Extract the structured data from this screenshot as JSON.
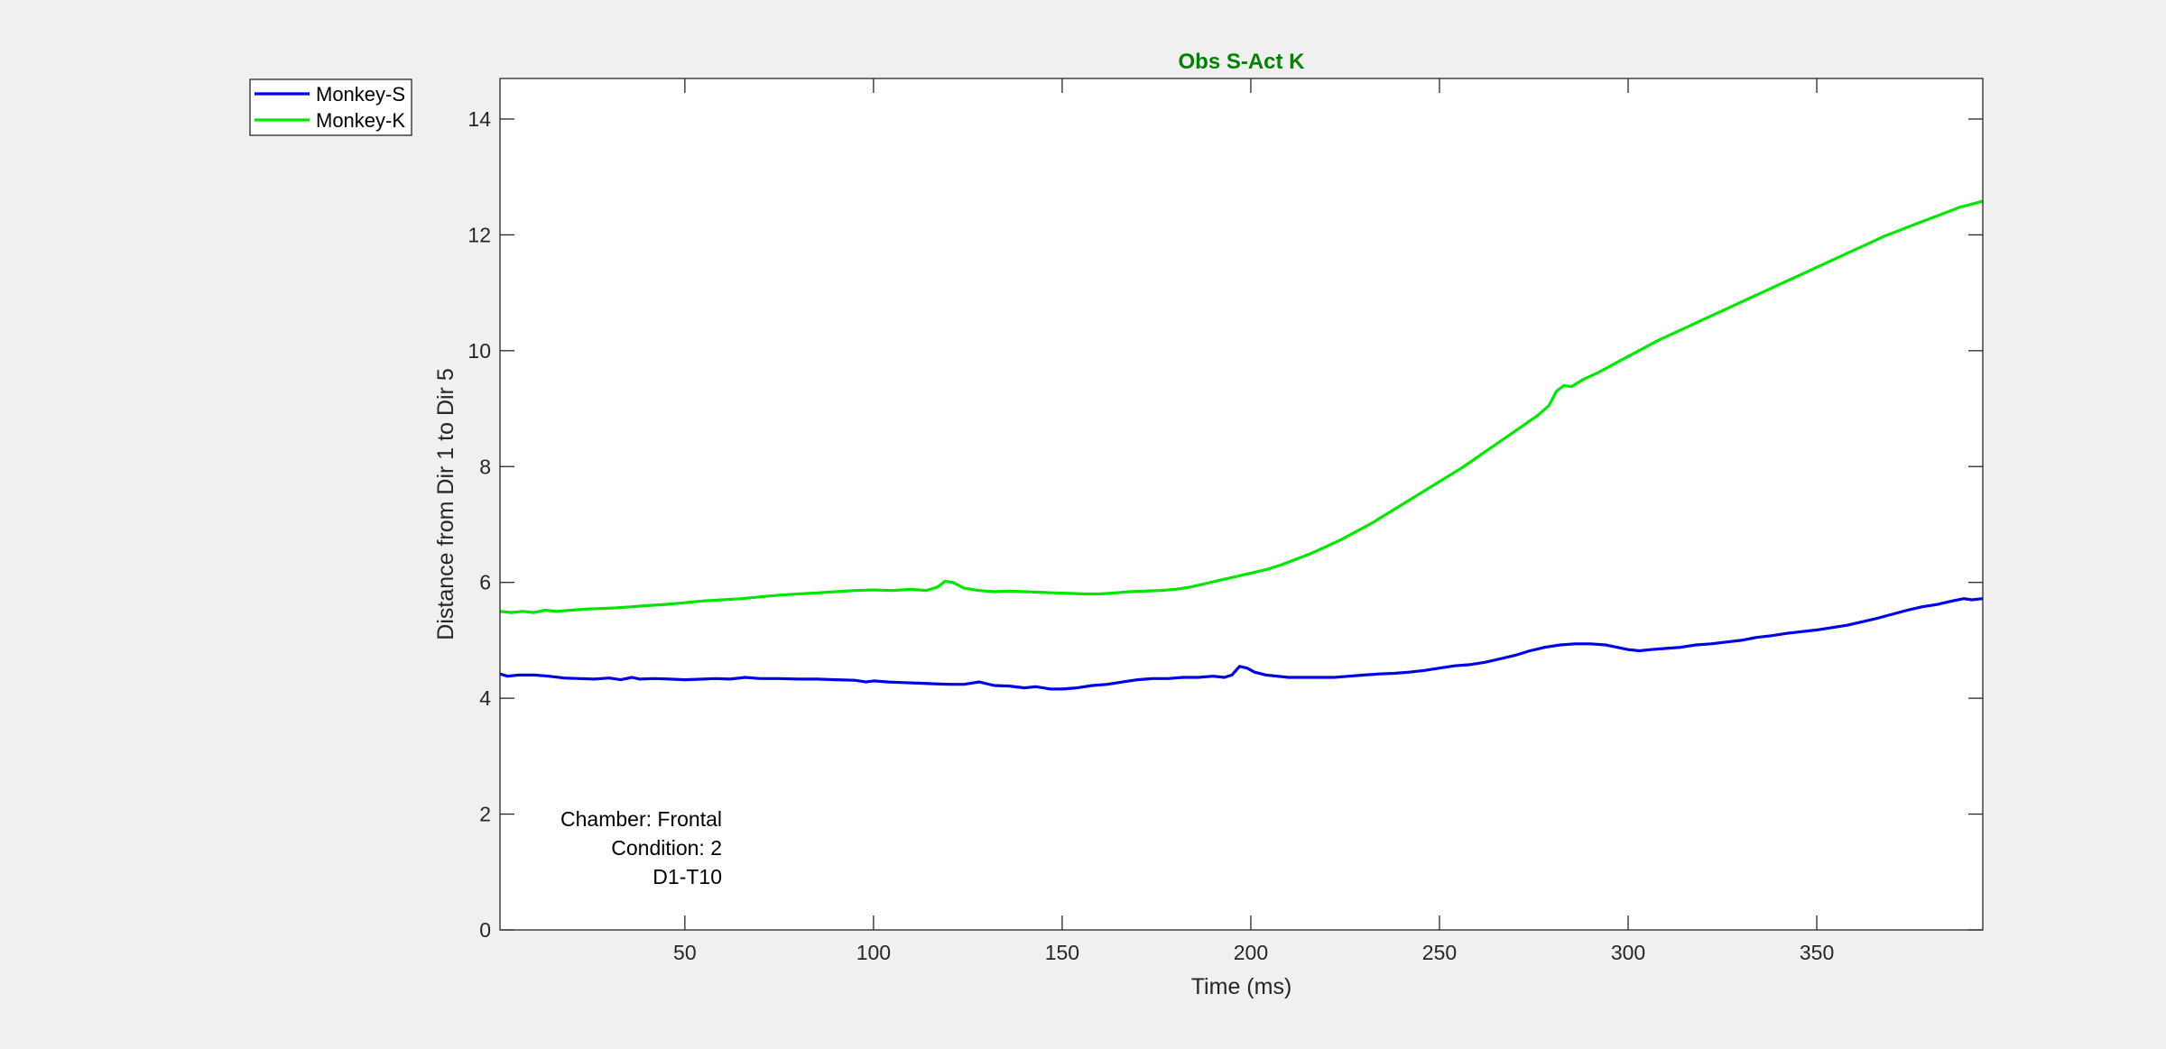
{
  "figure": {
    "background": "#f0f0f0"
  },
  "chart_data": {
    "type": "line",
    "title": "Obs S-Act K",
    "title_color": "#008000",
    "xlabel": "Time (ms)",
    "ylabel": "Distance from Dir 1 to Dir 5",
    "xlim": [
      1,
      394
    ],
    "ylim": [
      0,
      14.7
    ],
    "xticks": [
      50,
      100,
      150,
      200,
      250,
      300,
      350
    ],
    "yticks": [
      0,
      2,
      4,
      6,
      8,
      10,
      12,
      14
    ],
    "grid": false,
    "legend_position": "outside-top-left",
    "annotation": [
      "Chamber: Frontal",
      "Condition: 2",
      "D1-T10"
    ],
    "series": [
      {
        "name": "Monkey-S",
        "color": "#0000e6",
        "points": [
          [
            1,
            4.42
          ],
          [
            3,
            4.38
          ],
          [
            6,
            4.4
          ],
          [
            10,
            4.4
          ],
          [
            14,
            4.38
          ],
          [
            18,
            4.35
          ],
          [
            22,
            4.34
          ],
          [
            26,
            4.33
          ],
          [
            30,
            4.35
          ],
          [
            33,
            4.32
          ],
          [
            36,
            4.36
          ],
          [
            38,
            4.33
          ],
          [
            42,
            4.34
          ],
          [
            46,
            4.33
          ],
          [
            50,
            4.32
          ],
          [
            55,
            4.33
          ],
          [
            58,
            4.34
          ],
          [
            62,
            4.33
          ],
          [
            66,
            4.36
          ],
          [
            70,
            4.34
          ],
          [
            75,
            4.34
          ],
          [
            80,
            4.33
          ],
          [
            85,
            4.33
          ],
          [
            90,
            4.32
          ],
          [
            95,
            4.31
          ],
          [
            98,
            4.28
          ],
          [
            100,
            4.3
          ],
          [
            104,
            4.28
          ],
          [
            108,
            4.27
          ],
          [
            112,
            4.26
          ],
          [
            116,
            4.25
          ],
          [
            120,
            4.24
          ],
          [
            124,
            4.24
          ],
          [
            128,
            4.28
          ],
          [
            132,
            4.22
          ],
          [
            136,
            4.21
          ],
          [
            140,
            4.18
          ],
          [
            143,
            4.2
          ],
          [
            147,
            4.16
          ],
          [
            150,
            4.16
          ],
          [
            154,
            4.18
          ],
          [
            158,
            4.22
          ],
          [
            162,
            4.24
          ],
          [
            166,
            4.28
          ],
          [
            170,
            4.32
          ],
          [
            174,
            4.34
          ],
          [
            178,
            4.34
          ],
          [
            182,
            4.36
          ],
          [
            186,
            4.36
          ],
          [
            190,
            4.38
          ],
          [
            193,
            4.36
          ],
          [
            195,
            4.4
          ],
          [
            197,
            4.55
          ],
          [
            199,
            4.52
          ],
          [
            201,
            4.45
          ],
          [
            204,
            4.4
          ],
          [
            207,
            4.38
          ],
          [
            210,
            4.36
          ],
          [
            214,
            4.36
          ],
          [
            218,
            4.36
          ],
          [
            222,
            4.36
          ],
          [
            226,
            4.38
          ],
          [
            230,
            4.4
          ],
          [
            234,
            4.42
          ],
          [
            238,
            4.43
          ],
          [
            242,
            4.45
          ],
          [
            246,
            4.48
          ],
          [
            250,
            4.52
          ],
          [
            254,
            4.56
          ],
          [
            258,
            4.58
          ],
          [
            262,
            4.62
          ],
          [
            266,
            4.68
          ],
          [
            270,
            4.74
          ],
          [
            274,
            4.82
          ],
          [
            278,
            4.88
          ],
          [
            282,
            4.92
          ],
          [
            286,
            4.94
          ],
          [
            290,
            4.94
          ],
          [
            294,
            4.92
          ],
          [
            297,
            4.88
          ],
          [
            300,
            4.84
          ],
          [
            303,
            4.82
          ],
          [
            306,
            4.84
          ],
          [
            310,
            4.86
          ],
          [
            314,
            4.88
          ],
          [
            318,
            4.92
          ],
          [
            322,
            4.94
          ],
          [
            326,
            4.97
          ],
          [
            330,
            5.0
          ],
          [
            334,
            5.05
          ],
          [
            338,
            5.08
          ],
          [
            342,
            5.12
          ],
          [
            346,
            5.15
          ],
          [
            350,
            5.18
          ],
          [
            354,
            5.22
          ],
          [
            358,
            5.26
          ],
          [
            362,
            5.32
          ],
          [
            366,
            5.38
          ],
          [
            370,
            5.45
          ],
          [
            374,
            5.52
          ],
          [
            378,
            5.58
          ],
          [
            382,
            5.62
          ],
          [
            386,
            5.68
          ],
          [
            389,
            5.72
          ],
          [
            391,
            5.7
          ],
          [
            394,
            5.72
          ]
        ]
      },
      {
        "name": "Monkey-K",
        "color": "#00e600",
        "points": [
          [
            1,
            5.5
          ],
          [
            4,
            5.48
          ],
          [
            7,
            5.5
          ],
          [
            10,
            5.48
          ],
          [
            13,
            5.52
          ],
          [
            16,
            5.5
          ],
          [
            20,
            5.52
          ],
          [
            24,
            5.54
          ],
          [
            28,
            5.55
          ],
          [
            32,
            5.56
          ],
          [
            36,
            5.58
          ],
          [
            40,
            5.6
          ],
          [
            45,
            5.62
          ],
          [
            50,
            5.65
          ],
          [
            55,
            5.68
          ],
          [
            60,
            5.7
          ],
          [
            65,
            5.72
          ],
          [
            70,
            5.75
          ],
          [
            75,
            5.78
          ],
          [
            80,
            5.8
          ],
          [
            85,
            5.82
          ],
          [
            90,
            5.84
          ],
          [
            95,
            5.86
          ],
          [
            100,
            5.87
          ],
          [
            105,
            5.86
          ],
          [
            110,
            5.88
          ],
          [
            114,
            5.86
          ],
          [
            117,
            5.92
          ],
          [
            119,
            6.02
          ],
          [
            121,
            6.0
          ],
          [
            124,
            5.9
          ],
          [
            128,
            5.86
          ],
          [
            132,
            5.84
          ],
          [
            136,
            5.85
          ],
          [
            140,
            5.84
          ],
          [
            144,
            5.83
          ],
          [
            148,
            5.82
          ],
          [
            152,
            5.81
          ],
          [
            156,
            5.8
          ],
          [
            160,
            5.8
          ],
          [
            164,
            5.82
          ],
          [
            168,
            5.84
          ],
          [
            172,
            5.85
          ],
          [
            176,
            5.86
          ],
          [
            180,
            5.88
          ],
          [
            184,
            5.92
          ],
          [
            188,
            5.98
          ],
          [
            192,
            6.04
          ],
          [
            196,
            6.1
          ],
          [
            200,
            6.16
          ],
          [
            204,
            6.22
          ],
          [
            208,
            6.3
          ],
          [
            212,
            6.4
          ],
          [
            216,
            6.5
          ],
          [
            220,
            6.62
          ],
          [
            224,
            6.74
          ],
          [
            228,
            6.88
          ],
          [
            232,
            7.02
          ],
          [
            236,
            7.18
          ],
          [
            240,
            7.34
          ],
          [
            244,
            7.5
          ],
          [
            248,
            7.66
          ],
          [
            252,
            7.82
          ],
          [
            256,
            7.98
          ],
          [
            260,
            8.16
          ],
          [
            264,
            8.34
          ],
          [
            268,
            8.52
          ],
          [
            272,
            8.7
          ],
          [
            276,
            8.88
          ],
          [
            279,
            9.05
          ],
          [
            281,
            9.3
          ],
          [
            283,
            9.4
          ],
          [
            285,
            9.38
          ],
          [
            288,
            9.5
          ],
          [
            292,
            9.62
          ],
          [
            296,
            9.76
          ],
          [
            300,
            9.9
          ],
          [
            304,
            10.04
          ],
          [
            308,
            10.18
          ],
          [
            312,
            10.3
          ],
          [
            316,
            10.42
          ],
          [
            320,
            10.54
          ],
          [
            324,
            10.66
          ],
          [
            328,
            10.78
          ],
          [
            332,
            10.9
          ],
          [
            336,
            11.02
          ],
          [
            340,
            11.14
          ],
          [
            344,
            11.26
          ],
          [
            348,
            11.38
          ],
          [
            352,
            11.5
          ],
          [
            356,
            11.62
          ],
          [
            360,
            11.74
          ],
          [
            364,
            11.86
          ],
          [
            368,
            11.98
          ],
          [
            372,
            12.08
          ],
          [
            376,
            12.18
          ],
          [
            380,
            12.28
          ],
          [
            384,
            12.38
          ],
          [
            388,
            12.48
          ],
          [
            391,
            12.53
          ],
          [
            394,
            12.58
          ]
        ]
      }
    ]
  }
}
